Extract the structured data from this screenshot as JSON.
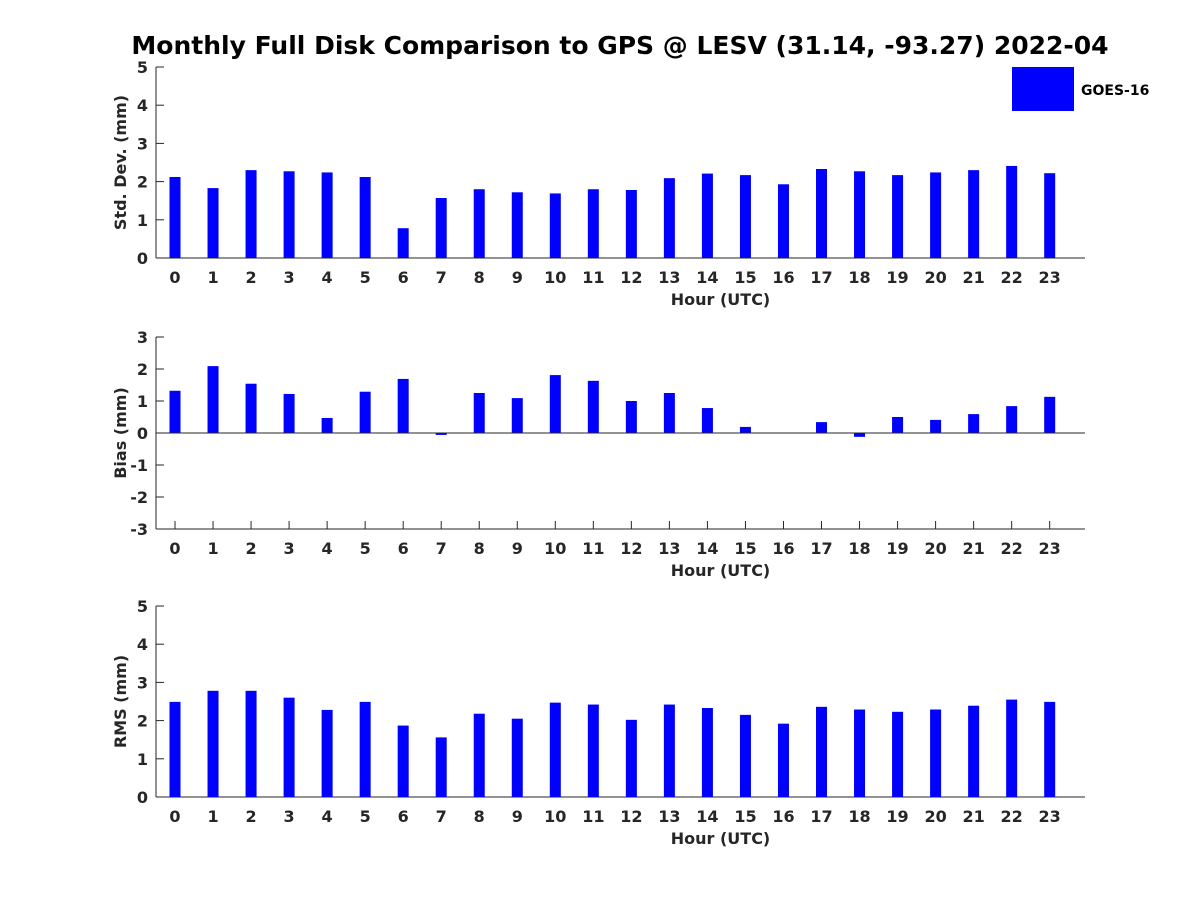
{
  "title": "Monthly Full Disk Comparison to GPS @ LESV (31.14, -93.27) 2022-04",
  "legend": {
    "label": "GOES-16",
    "color": "#0000ff",
    "placement": "top-right"
  },
  "chart_data": [
    {
      "type": "bar",
      "xlabel": "Hour (UTC)",
      "ylabel": "Std. Dev. (mm)",
      "ylim": [
        0,
        5
      ],
      "yticks": [
        "0",
        "1",
        "2",
        "3",
        "4",
        "5"
      ],
      "categories": [
        "0",
        "1",
        "2",
        "3",
        "4",
        "5",
        "6",
        "7",
        "8",
        "9",
        "10",
        "11",
        "12",
        "13",
        "14",
        "15",
        "16",
        "17",
        "18",
        "19",
        "20",
        "21",
        "22",
        "23"
      ],
      "values": [
        2.12,
        1.83,
        2.3,
        2.27,
        2.24,
        2.12,
        0.78,
        1.57,
        1.8,
        1.72,
        1.69,
        1.8,
        1.78,
        2.09,
        2.21,
        2.17,
        1.93,
        2.33,
        2.27,
        2.17,
        2.24,
        2.3,
        2.41,
        2.22
      ]
    },
    {
      "type": "bar",
      "xlabel": "Hour (UTC)",
      "ylabel": "Bias (mm)",
      "ylim": [
        -3,
        3
      ],
      "yticks": [
        "-3",
        "-2",
        "-1",
        "0",
        "1",
        "2",
        "3"
      ],
      "categories": [
        "0",
        "1",
        "2",
        "3",
        "4",
        "5",
        "6",
        "7",
        "8",
        "9",
        "10",
        "11",
        "12",
        "13",
        "14",
        "15",
        "16",
        "17",
        "18",
        "19",
        "20",
        "21",
        "22",
        "23"
      ],
      "values": [
        1.32,
        2.09,
        1.54,
        1.22,
        0.47,
        1.29,
        1.69,
        -0.06,
        1.25,
        1.09,
        1.81,
        1.63,
        1.0,
        1.25,
        0.78,
        0.19,
        0.0,
        0.34,
        -0.12,
        0.5,
        0.41,
        0.59,
        0.84,
        1.13
      ]
    },
    {
      "type": "bar",
      "xlabel": "Hour (UTC)",
      "ylabel": "RMS (mm)",
      "ylim": [
        0,
        5
      ],
      "yticks": [
        "0",
        "1",
        "2",
        "3",
        "4",
        "5"
      ],
      "categories": [
        "0",
        "1",
        "2",
        "3",
        "4",
        "5",
        "6",
        "7",
        "8",
        "9",
        "10",
        "11",
        "12",
        "13",
        "14",
        "15",
        "16",
        "17",
        "18",
        "19",
        "20",
        "21",
        "22",
        "23"
      ],
      "values": [
        2.49,
        2.78,
        2.78,
        2.6,
        2.28,
        2.49,
        1.87,
        1.56,
        2.18,
        2.05,
        2.47,
        2.42,
        2.02,
        2.42,
        2.33,
        2.15,
        1.92,
        2.36,
        2.29,
        2.23,
        2.29,
        2.39,
        2.55,
        2.49
      ]
    }
  ]
}
